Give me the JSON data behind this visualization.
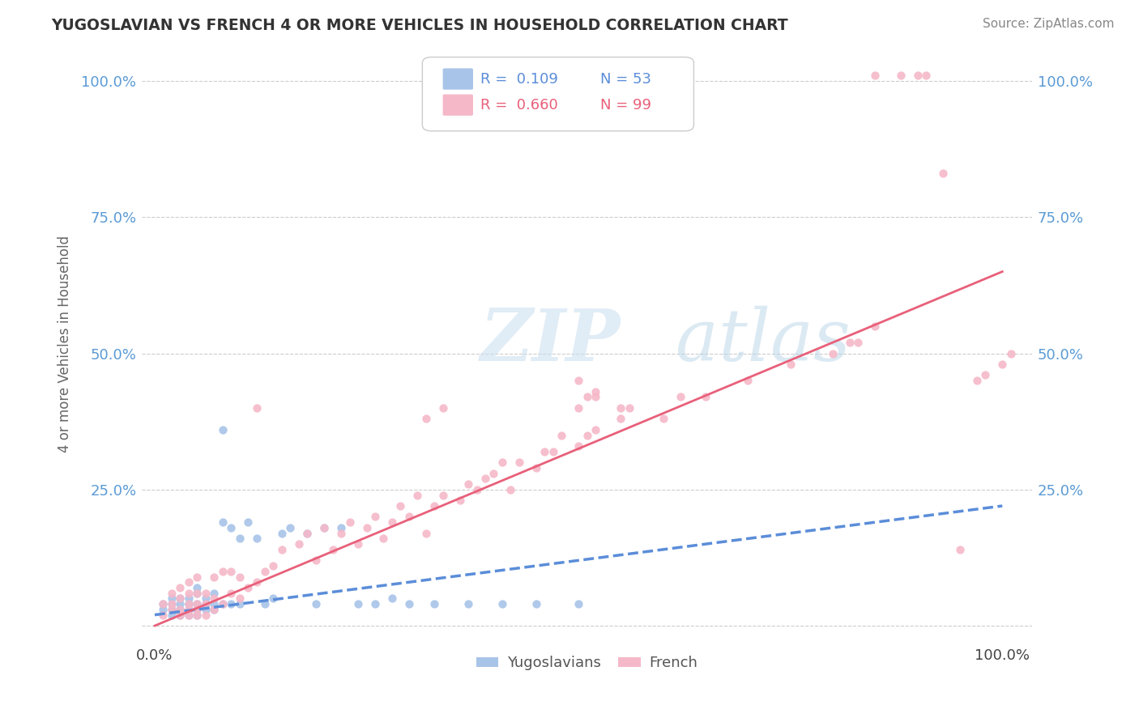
{
  "title": "YUGOSLAVIAN VS FRENCH 4 OR MORE VEHICLES IN HOUSEHOLD CORRELATION CHART",
  "source": "Source: ZipAtlas.com",
  "ylabel": "4 or more Vehicles in Household",
  "watermark_zip": "ZIP",
  "watermark_atlas": "atlas",
  "legend_label_blue": "Yugoslavians",
  "legend_label_pink": "French",
  "blue_color": "#a8c4e8",
  "pink_color": "#f5b8c8",
  "blue_line_color": "#5b8dd9",
  "pink_line_color": "#e8607a",
  "background_color": "#ffffff",
  "grid_color": "#cccccc",
  "tick_color_blue": "#5b9bd5",
  "tick_color_dark": "#444444",
  "blue_x": [
    0.01,
    0.01,
    0.02,
    0.02,
    0.02,
    0.02,
    0.03,
    0.03,
    0.03,
    0.03,
    0.03,
    0.04,
    0.04,
    0.04,
    0.04,
    0.04,
    0.05,
    0.05,
    0.05,
    0.05,
    0.05,
    0.06,
    0.06,
    0.06,
    0.07,
    0.07,
    0.07,
    0.08,
    0.08,
    0.08,
    0.09,
    0.09,
    0.1,
    0.1,
    0.11,
    0.12,
    0.13,
    0.14,
    0.15,
    0.16,
    0.18,
    0.19,
    0.2,
    0.22,
    0.24,
    0.26,
    0.28,
    0.3,
    0.33,
    0.37,
    0.41,
    0.45,
    0.5
  ],
  "blue_y": [
    0.03,
    0.04,
    0.02,
    0.03,
    0.04,
    0.05,
    0.02,
    0.03,
    0.03,
    0.04,
    0.05,
    0.02,
    0.03,
    0.04,
    0.04,
    0.05,
    0.02,
    0.03,
    0.04,
    0.06,
    0.07,
    0.03,
    0.04,
    0.05,
    0.03,
    0.04,
    0.06,
    0.04,
    0.19,
    0.36,
    0.04,
    0.18,
    0.04,
    0.16,
    0.19,
    0.16,
    0.04,
    0.05,
    0.17,
    0.18,
    0.17,
    0.04,
    0.18,
    0.18,
    0.04,
    0.04,
    0.05,
    0.04,
    0.04,
    0.04,
    0.04,
    0.04,
    0.04
  ],
  "pink_x": [
    0.01,
    0.01,
    0.02,
    0.02,
    0.02,
    0.03,
    0.03,
    0.03,
    0.03,
    0.04,
    0.04,
    0.04,
    0.04,
    0.04,
    0.05,
    0.05,
    0.05,
    0.05,
    0.05,
    0.06,
    0.06,
    0.06,
    0.07,
    0.07,
    0.07,
    0.08,
    0.08,
    0.09,
    0.09,
    0.1,
    0.1,
    0.11,
    0.12,
    0.13,
    0.14,
    0.15,
    0.17,
    0.18,
    0.19,
    0.2,
    0.21,
    0.22,
    0.23,
    0.24,
    0.25,
    0.26,
    0.27,
    0.28,
    0.29,
    0.3,
    0.31,
    0.32,
    0.33,
    0.34,
    0.36,
    0.37,
    0.38,
    0.39,
    0.4,
    0.41,
    0.42,
    0.43,
    0.45,
    0.46,
    0.47,
    0.48,
    0.5,
    0.51,
    0.52,
    0.55,
    0.56,
    0.6,
    0.62,
    0.65,
    0.7,
    0.75,
    0.8,
    0.82,
    0.83,
    0.85,
    0.85,
    0.88,
    0.9,
    0.91,
    0.93,
    0.95,
    0.97,
    0.98,
    1.0,
    1.01,
    0.5,
    0.52,
    0.5,
    0.12,
    0.32,
    0.34,
    0.55,
    0.51,
    0.52
  ],
  "pink_y": [
    0.02,
    0.04,
    0.03,
    0.04,
    0.06,
    0.02,
    0.03,
    0.05,
    0.07,
    0.02,
    0.03,
    0.04,
    0.06,
    0.08,
    0.02,
    0.03,
    0.04,
    0.06,
    0.09,
    0.02,
    0.04,
    0.06,
    0.03,
    0.05,
    0.09,
    0.04,
    0.1,
    0.06,
    0.1,
    0.05,
    0.09,
    0.07,
    0.08,
    0.1,
    0.11,
    0.14,
    0.15,
    0.17,
    0.12,
    0.18,
    0.14,
    0.17,
    0.19,
    0.15,
    0.18,
    0.2,
    0.16,
    0.19,
    0.22,
    0.2,
    0.24,
    0.17,
    0.22,
    0.24,
    0.23,
    0.26,
    0.25,
    0.27,
    0.28,
    0.3,
    0.25,
    0.3,
    0.29,
    0.32,
    0.32,
    0.35,
    0.33,
    0.35,
    0.36,
    0.38,
    0.4,
    0.38,
    0.42,
    0.42,
    0.45,
    0.48,
    0.5,
    0.52,
    0.52,
    0.55,
    1.01,
    1.01,
    1.01,
    1.01,
    0.83,
    0.14,
    0.45,
    0.46,
    0.48,
    0.5,
    0.4,
    0.42,
    0.45,
    0.4,
    0.38,
    0.4,
    0.4,
    0.42,
    0.43
  ],
  "blue_line_x": [
    0.0,
    1.0
  ],
  "blue_line_y": [
    0.02,
    0.22
  ],
  "pink_line_x": [
    0.0,
    1.0
  ],
  "pink_line_y": [
    0.0,
    0.65
  ],
  "xlim": [
    -0.015,
    1.035
  ],
  "ylim": [
    -0.025,
    1.06
  ]
}
